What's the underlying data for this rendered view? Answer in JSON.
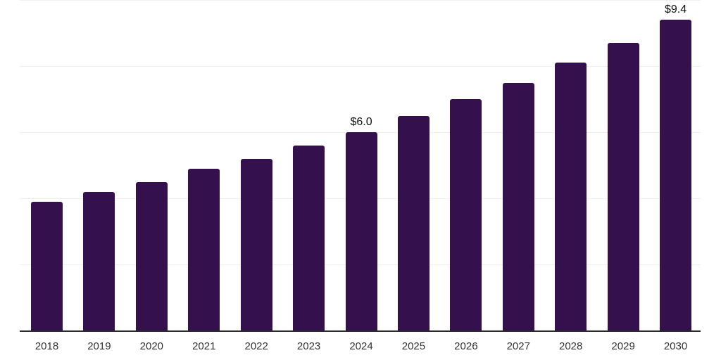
{
  "chart_data": {
    "type": "bar",
    "title": "",
    "xlabel": "",
    "ylabel": "",
    "categories": [
      "2018",
      "2019",
      "2020",
      "2021",
      "2022",
      "2023",
      "2024",
      "2025",
      "2026",
      "2027",
      "2028",
      "2029",
      "2030"
    ],
    "values": [
      3.9,
      4.2,
      4.5,
      4.9,
      5.2,
      5.6,
      6.0,
      6.5,
      7.0,
      7.5,
      8.1,
      8.7,
      9.4
    ],
    "bar_labels": [
      "",
      "",
      "",
      "",
      "",
      "",
      "$6.0",
      "",
      "",
      "",
      "",
      "",
      "$9.4"
    ],
    "ylim": [
      0,
      10
    ],
    "gridline_step": 2,
    "grid": true,
    "legend": false,
    "colors": {
      "bar": "#34114C",
      "axis": "#2b2b2b",
      "gridline": "#f0f0f0",
      "value_label": "#111111",
      "tick_label": "#333333",
      "background": "#ffffff"
    }
  }
}
